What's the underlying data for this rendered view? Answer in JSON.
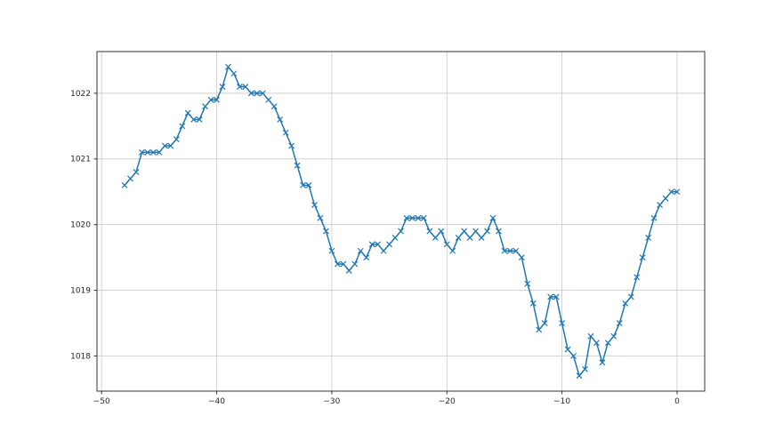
{
  "chart_data": {
    "type": "line",
    "title": "",
    "xlabel": "",
    "ylabel": "",
    "legend": null,
    "grid": true,
    "line_color": "#1f77b4",
    "grid_color": "#c9c9c9",
    "spine_color": "#333333",
    "tick_label_color": "#262626",
    "marker": "x",
    "x_ticks": [
      -50,
      -40,
      -30,
      -20,
      -10,
      0
    ],
    "y_ticks": [
      1018,
      1019,
      1020,
      1021,
      1022
    ],
    "xlim": [
      -50.4,
      2.4
    ],
    "ylim": [
      1017.465,
      1022.635
    ],
    "x": [
      -48,
      -47.5,
      -47,
      -46.5,
      -46,
      -45.5,
      -45,
      -44.5,
      -44,
      -43.5,
      -43,
      -42.5,
      -42,
      -41.5,
      -41,
      -40.5,
      -40,
      -39.5,
      -39,
      -38.5,
      -38,
      -37.5,
      -37,
      -36.5,
      -36,
      -35.5,
      -35,
      -34.5,
      -34,
      -33.5,
      -33,
      -32.5,
      -32,
      -31.5,
      -31,
      -30.5,
      -30,
      -29.5,
      -29,
      -28.5,
      -28,
      -27.5,
      -27,
      -26.5,
      -26,
      -25.5,
      -25,
      -24.5,
      -24,
      -23.5,
      -23,
      -22.5,
      -22,
      -21.5,
      -21,
      -20.5,
      -20,
      -19.5,
      -19,
      -18.5,
      -18,
      -17.5,
      -17,
      -16.5,
      -16,
      -15.5,
      -15,
      -14.5,
      -14,
      -13.5,
      -13,
      -12.5,
      -12,
      -11.5,
      -11,
      -10.5,
      -10,
      -9.5,
      -9,
      -8.5,
      -8,
      -7.5,
      -7,
      -6.5,
      -6,
      -5.5,
      -5,
      -4.5,
      -4,
      -3.5,
      -3,
      -2.5,
      -2,
      -1.5,
      -1,
      -0.5,
      0
    ],
    "y": [
      1020.6,
      1020.7,
      1020.8,
      1021.1,
      1021.1,
      1021.1,
      1021.1,
      1021.2,
      1021.2,
      1021.3,
      1021.5,
      1021.7,
      1021.6,
      1021.6,
      1021.8,
      1021.9,
      1021.9,
      1022.1,
      1022.4,
      1022.3,
      1022.1,
      1022.1,
      1022.0,
      1022.0,
      1022.0,
      1021.9,
      1021.8,
      1021.6,
      1021.4,
      1021.2,
      1020.9,
      1020.6,
      1020.6,
      1020.3,
      1020.1,
      1019.9,
      1019.6,
      1019.4,
      1019.4,
      1019.3,
      1019.4,
      1019.6,
      1019.5,
      1019.7,
      1019.7,
      1019.6,
      1019.7,
      1019.8,
      1019.9,
      1020.1,
      1020.1,
      1020.1,
      1020.1,
      1019.9,
      1019.8,
      1019.9,
      1019.7,
      1019.6,
      1019.8,
      1019.9,
      1019.8,
      1019.9,
      1019.8,
      1019.9,
      1020.1,
      1019.9,
      1019.6,
      1019.6,
      1019.6,
      1019.5,
      1019.1,
      1018.8,
      1018.4,
      1018.5,
      1018.9,
      1018.9,
      1018.5,
      1018.1,
      1018.0,
      1017.7,
      1017.8,
      1018.3,
      1018.2,
      1017.9,
      1018.2,
      1018.3,
      1018.5,
      1018.8,
      1018.9,
      1019.2,
      1019.5,
      1019.8,
      1020.1,
      1020.3,
      1020.4,
      1020.5,
      1020.5
    ]
  }
}
